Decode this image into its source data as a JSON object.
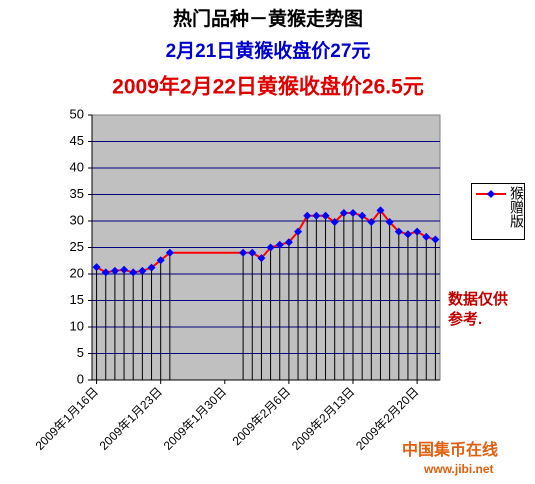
{
  "chart_data": {
    "type": "line",
    "title": "热门品种－黄猴走势图",
    "subtitle": "2月21日黄猴收盘价27元",
    "subtitle2": "2009年2月22日黄猴收盘价26.5元",
    "annotation": "数据仅供参考.",
    "categories": [
      "2009年1月16日",
      null,
      null,
      null,
      null,
      null,
      null,
      "2009年1月23日",
      null,
      null,
      null,
      null,
      null,
      null,
      "2009年1月30日",
      null,
      null,
      null,
      null,
      null,
      null,
      "2009年2月6日",
      null,
      null,
      null,
      null,
      null,
      null,
      "2009年2月13日",
      null,
      null,
      null,
      null,
      null,
      null,
      "2009年2月20日",
      null,
      null
    ],
    "series": [
      {
        "name": "猴赠版",
        "color": "#ff0000",
        "marker_color": "#0000ff",
        "values": [
          21.3,
          20.3,
          20.6,
          20.8,
          20.3,
          20.6,
          21.2,
          22.6,
          24.0,
          null,
          null,
          null,
          null,
          null,
          null,
          null,
          24.0,
          24.0,
          23.0,
          25.0,
          25.5,
          26.0,
          28.0,
          31.0,
          31.0,
          31.0,
          29.8,
          31.5,
          31.5,
          31.0,
          29.8,
          32.0,
          29.8,
          28.0,
          27.5,
          28.0,
          27.0,
          26.5
        ]
      }
    ],
    "ylim": [
      0,
      50
    ],
    "yticks": [
      0,
      5,
      10,
      15,
      20,
      25,
      30,
      35,
      40,
      45,
      50
    ],
    "grid": true,
    "drop_lines": true,
    "legend": "right"
  },
  "watermark": {
    "title": "中国集币在线",
    "url": "www.jibi.net"
  }
}
